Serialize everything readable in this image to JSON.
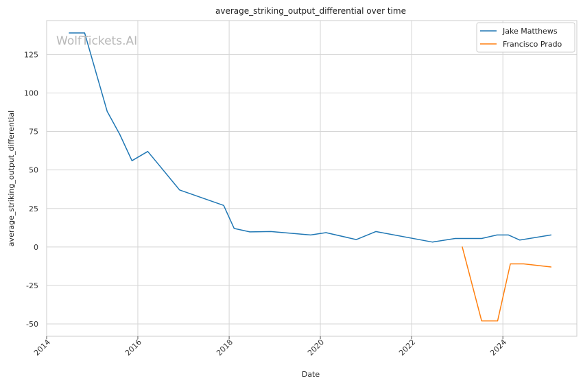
{
  "chart_data": {
    "type": "line",
    "title": "average_striking_output_differential over time",
    "xlabel": "Date",
    "ylabel": "average_striking_output_differential",
    "watermark": "WolfTickets.AI",
    "xlim": [
      "2014-01-01",
      "2025-08-15"
    ],
    "ylim": [
      -58,
      147
    ],
    "x_ticks": [
      "2014",
      "2016",
      "2018",
      "2020",
      "2022",
      "2024"
    ],
    "y_ticks": [
      -50,
      -25,
      0,
      25,
      50,
      75,
      100,
      125
    ],
    "grid": true,
    "legend_position": "top-right",
    "series": [
      {
        "name": "Jake Matthews",
        "color": "#1f77b4",
        "points": [
          {
            "x": "2014-07-01",
            "y": 139
          },
          {
            "x": "2014-11-01",
            "y": 139
          },
          {
            "x": "2015-05-01",
            "y": 88
          },
          {
            "x": "2015-08-10",
            "y": 73
          },
          {
            "x": "2015-11-15",
            "y": 56
          },
          {
            "x": "2016-03-20",
            "y": 62
          },
          {
            "x": "2016-07-01",
            "y": 52
          },
          {
            "x": "2016-11-30",
            "y": 37
          },
          {
            "x": "2017-11-18",
            "y": 27
          },
          {
            "x": "2018-02-10",
            "y": 12
          },
          {
            "x": "2018-06-15",
            "y": 9.8
          },
          {
            "x": "2018-12-01",
            "y": 10
          },
          {
            "x": "2019-10-15",
            "y": 7.8
          },
          {
            "x": "2020-02-15",
            "y": 9.3
          },
          {
            "x": "2020-10-15",
            "y": 4.8
          },
          {
            "x": "2021-03-20",
            "y": 10
          },
          {
            "x": "2022-06-15",
            "y": 3.2
          },
          {
            "x": "2022-12-15",
            "y": 5.5
          },
          {
            "x": "2023-07-15",
            "y": 5.5
          },
          {
            "x": "2023-11-15",
            "y": 7.8
          },
          {
            "x": "2024-02-15",
            "y": 7.8
          },
          {
            "x": "2024-05-15",
            "y": 4.5
          },
          {
            "x": "2025-01-20",
            "y": 7.8
          }
        ]
      },
      {
        "name": "Francisco Prado",
        "color": "#ff7f0e",
        "points": [
          {
            "x": "2023-02-10",
            "y": 0
          },
          {
            "x": "2023-07-15",
            "y": -48
          },
          {
            "x": "2023-11-20",
            "y": -48
          },
          {
            "x": "2024-03-01",
            "y": -11
          },
          {
            "x": "2024-06-15",
            "y": -11
          },
          {
            "x": "2025-01-20",
            "y": -13
          }
        ]
      }
    ]
  }
}
